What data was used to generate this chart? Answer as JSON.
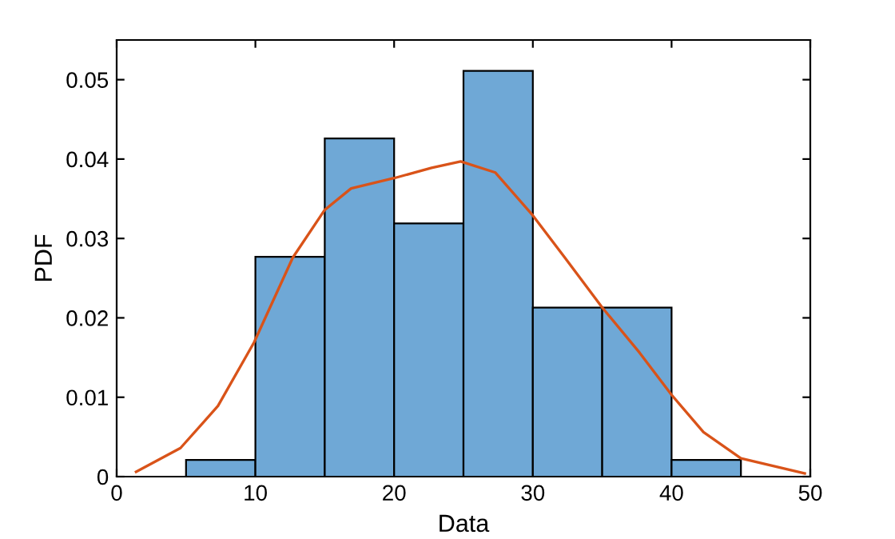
{
  "chart_data": {
    "type": "histogram",
    "xlabel": "Data",
    "ylabel": "PDF",
    "bins": [
      5,
      10,
      15,
      20,
      25,
      30,
      35,
      40,
      45
    ],
    "values": [
      0.0021,
      0.0277,
      0.0426,
      0.0319,
      0.0511,
      0.0213,
      0.0213,
      0.0021
    ],
    "color": "#6fa8d6",
    "series": [
      {
        "type": "line",
        "color": "#d95319",
        "x": [
          1.4,
          4.6,
          7.3,
          9.9,
          12.7,
          15.0,
          16.9,
          20.0,
          22.7,
          24.8,
          27.3,
          30.0,
          32.3,
          35.0,
          37.7,
          40.0,
          42.3,
          45.0,
          49.6
        ],
        "values": [
          0.0006,
          0.0036,
          0.0089,
          0.0169,
          0.0276,
          0.0336,
          0.0363,
          0.0376,
          0.0389,
          0.0397,
          0.0383,
          0.0329,
          0.0276,
          0.0213,
          0.0156,
          0.0103,
          0.0056,
          0.0023,
          0.0004
        ]
      }
    ],
    "xlim": [
      0,
      50
    ],
    "xticks": [
      0,
      10,
      20,
      30,
      40,
      50
    ],
    "ylim": [
      0,
      0.055
    ],
    "yticks": [
      0,
      0.01,
      0.02,
      0.03,
      0.04,
      0.05
    ],
    "grid": false,
    "legend": false
  }
}
